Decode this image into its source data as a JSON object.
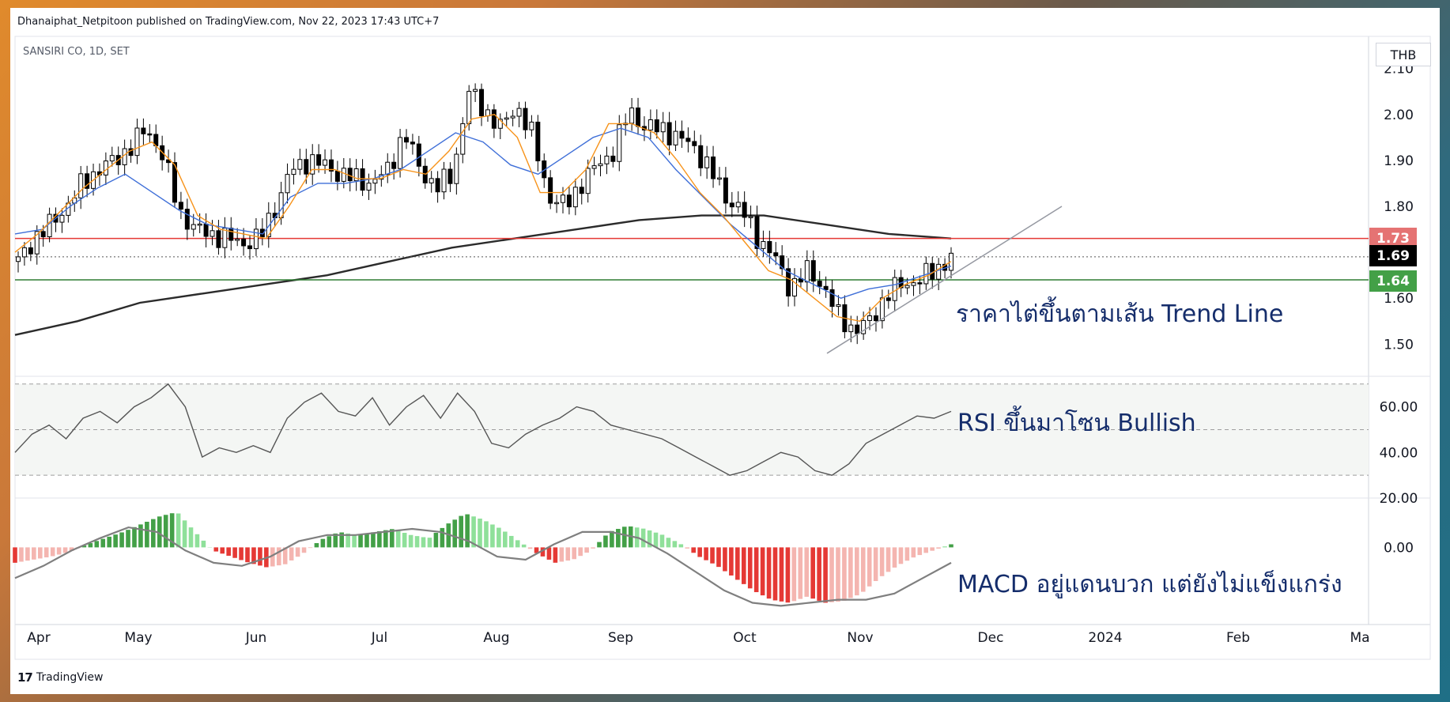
{
  "header": {
    "publisher_line": "Dhanaiphat_Netpitoon published on TradingView.com, Nov 22, 2023 17:43 UTC+7",
    "symbol_line": "SANSIRI CO, 1D, SET",
    "currency": "THB"
  },
  "footer": {
    "brand": "TradingView",
    "brand_mark": "17"
  },
  "annotations": {
    "price": "ราคาไต่ขึ้นตามเส้น Trend Line",
    "rsi": "RSI ขึ้นมาโซน Bullish",
    "macd": "MACD อยู่แดนบวก แต่ยังไม่แข็งแกร่ง"
  },
  "price_badges": {
    "resistance": "1.73",
    "last": "1.69",
    "support": "1.64"
  },
  "colors": {
    "resistance_line": "#e53935",
    "support_line": "#2e7d32",
    "last_badge": "#000000",
    "ema_fast": "#f7931a",
    "ema_slow": "#3f6fd8",
    "ma_long": "#2b2b2b",
    "trendline": "#9598a1",
    "rsi_line": "#555555",
    "hist_pos_strong": "#43a047",
    "hist_pos_weak": "#8fe09a",
    "hist_neg_strong": "#e53935",
    "hist_neg_weak": "#f4b5b0"
  },
  "chart_data": [
    {
      "type": "candlestick",
      "title": "SANSIRI CO, 1D, SET",
      "x_ticks": [
        "Apr",
        "May",
        "Jun",
        "Jul",
        "Aug",
        "Sep",
        "Oct",
        "Nov",
        "Dec",
        "2024",
        "Feb",
        "Ma"
      ],
      "y_ticks": [
        "1.50",
        "1.60",
        "1.70",
        "1.80",
        "1.90",
        "2.00",
        "2.10"
      ],
      "ylim": [
        1.43,
        2.17
      ],
      "close_path": [
        1.68,
        1.73,
        1.76,
        1.8,
        1.85,
        1.88,
        1.9,
        1.93,
        1.97,
        1.91,
        1.79,
        1.75,
        1.74,
        1.73,
        1.72,
        1.73,
        1.8,
        1.88,
        1.9,
        1.89,
        1.87,
        1.86,
        1.85,
        1.88,
        1.96,
        1.88,
        1.84,
        1.87,
        2.05,
        2.01,
        1.97,
        2.02,
        1.95,
        1.82,
        1.8,
        1.85,
        1.89,
        1.92,
        2.01,
        1.97,
        1.97,
        1.95,
        1.93,
        1.88,
        1.82,
        1.79,
        1.73,
        1.69,
        1.62,
        1.66,
        1.63,
        1.56,
        1.53,
        1.55,
        1.61,
        1.63,
        1.64,
        1.66,
        1.69
      ],
      "horizontal_levels": [
        1.73,
        1.69,
        1.64
      ],
      "ema_fast_path": [
        1.7,
        1.74,
        1.79,
        1.84,
        1.88,
        1.92,
        1.94,
        1.89,
        1.78,
        1.75,
        1.74,
        1.73,
        1.8,
        1.88,
        1.88,
        1.86,
        1.86,
        1.88,
        1.87,
        1.92,
        1.99,
        2.0,
        1.95,
        1.83,
        1.83,
        1.88,
        1.98,
        1.98,
        1.96,
        1.9,
        1.83,
        1.78,
        1.72,
        1.66,
        1.64,
        1.6,
        1.56,
        1.55,
        1.6,
        1.63,
        1.65,
        1.68
      ],
      "ema_slow_path": [
        1.74,
        1.75,
        1.8,
        1.84,
        1.87,
        1.83,
        1.79,
        1.76,
        1.75,
        1.74,
        1.82,
        1.85,
        1.85,
        1.86,
        1.88,
        1.92,
        1.96,
        1.94,
        1.89,
        1.87,
        1.91,
        1.95,
        1.97,
        1.95,
        1.88,
        1.82,
        1.76,
        1.71,
        1.66,
        1.63,
        1.6,
        1.62,
        1.63,
        1.65,
        1.67
      ],
      "ma_long_path": [
        1.52,
        1.55,
        1.59,
        1.61,
        1.63,
        1.65,
        1.68,
        1.71,
        1.73,
        1.75,
        1.77,
        1.78,
        1.78,
        1.76,
        1.74,
        1.73
      ],
      "trendline": {
        "from": [
          "Oct 26",
          1.48
        ],
        "to": [
          "Dec 20",
          1.8
        ]
      }
    },
    {
      "type": "line",
      "title": "RSI",
      "y_ticks": [
        "20.00",
        "40.00",
        "60.00"
      ],
      "ylim": [
        20,
        72
      ],
      "bands": [
        30,
        50,
        70
      ],
      "values": [
        40,
        48,
        52,
        46,
        55,
        58,
        53,
        60,
        64,
        70,
        60,
        38,
        42,
        40,
        43,
        40,
        55,
        62,
        66,
        58,
        56,
        64,
        52,
        60,
        65,
        55,
        66,
        58,
        44,
        42,
        48,
        52,
        55,
        60,
        58,
        52,
        50,
        48,
        46,
        42,
        38,
        34,
        30,
        32,
        36,
        40,
        38,
        32,
        30,
        35,
        44,
        48,
        52,
        56,
        55,
        58
      ]
    },
    {
      "type": "bar",
      "title": "MACD",
      "y_ticks": [
        "0.00"
      ],
      "ylim": [
        -0.045,
        0.03
      ],
      "histogram": [
        -0.01,
        -0.008,
        -0.006,
        -0.003,
        0.002,
        0.006,
        0.01,
        0.015,
        0.02,
        0.023,
        0.01,
        -0.002,
        -0.006,
        -0.01,
        -0.013,
        -0.011,
        -0.004,
        0.005,
        0.01,
        0.008,
        0.01,
        0.012,
        0.008,
        0.006,
        0.015,
        0.022,
        0.018,
        0.012,
        0.004,
        -0.004,
        -0.01,
        -0.008,
        -0.002,
        0.01,
        0.014,
        0.012,
        0.008,
        0.002,
        -0.006,
        -0.012,
        -0.02,
        -0.028,
        -0.034,
        -0.036,
        -0.032,
        -0.036,
        -0.035,
        -0.03,
        -0.02,
        -0.012,
        -0.006,
        -0.002,
        0.002
      ],
      "signal": [
        -0.02,
        -0.012,
        -0.002,
        0.006,
        0.013,
        0.01,
        -0.002,
        -0.01,
        -0.012,
        -0.006,
        0.004,
        0.008,
        0.008,
        0.01,
        0.012,
        0.01,
        0.004,
        -0.006,
        -0.008,
        0.002,
        0.01,
        0.01,
        0.006,
        -0.004,
        -0.016,
        -0.028,
        -0.036,
        -0.038,
        -0.036,
        -0.034,
        -0.034,
        -0.03,
        -0.02,
        -0.01
      ]
    }
  ]
}
